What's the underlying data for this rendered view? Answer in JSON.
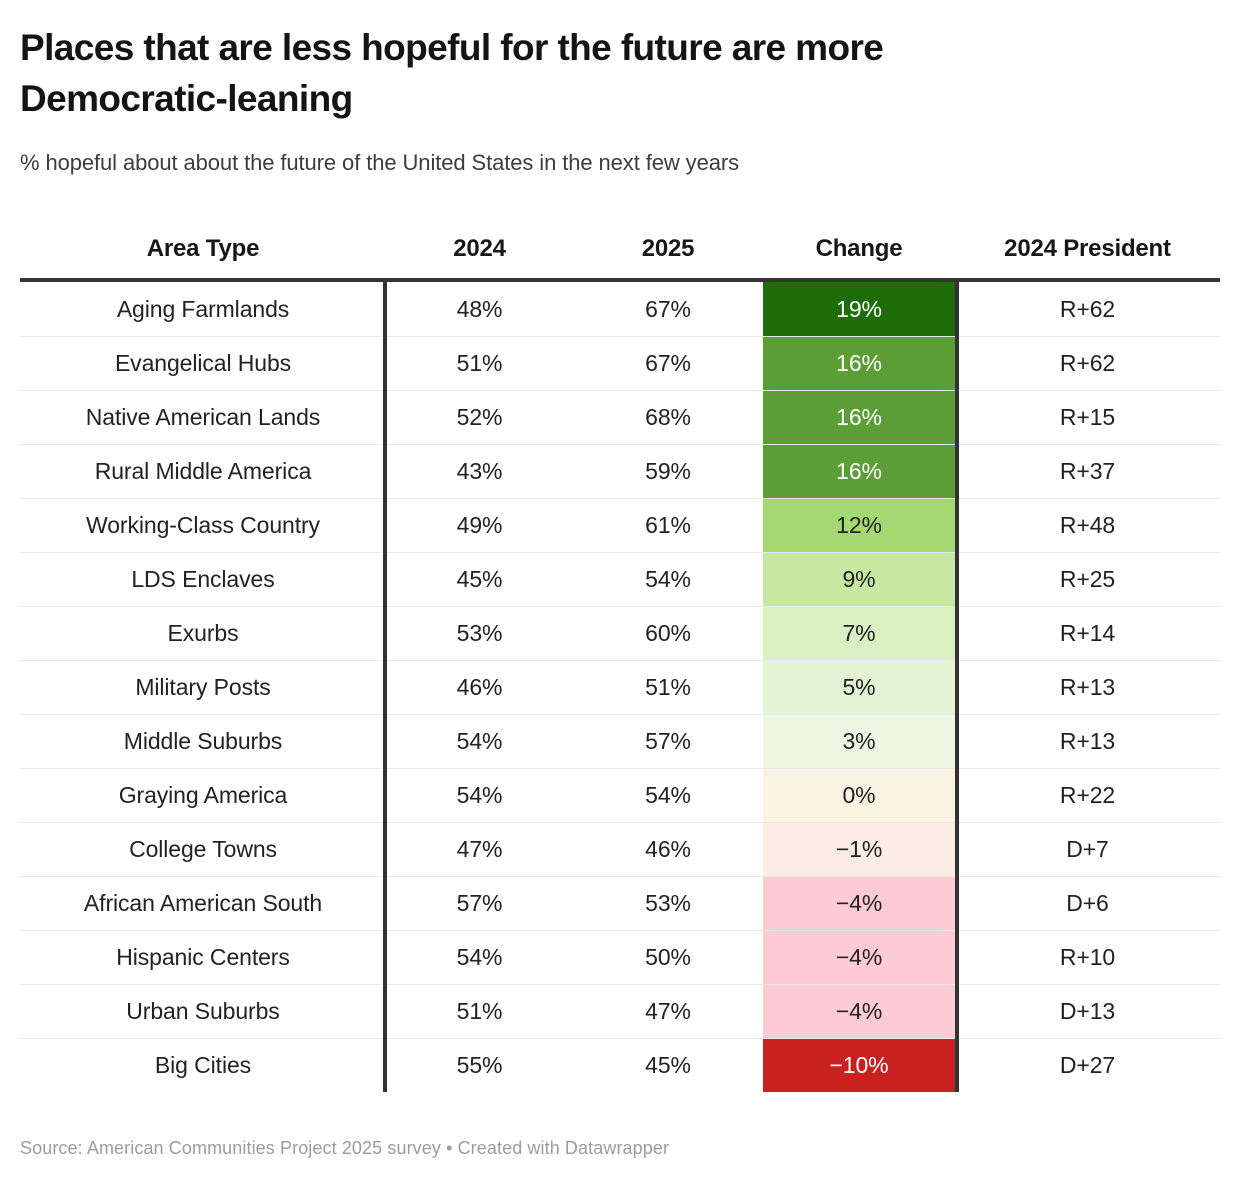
{
  "header": {
    "title": "Places that are less hopeful for the future are more Democratic-leaning",
    "subtitle": "% hopeful about about the future of the United States in the next few years"
  },
  "chart_data": {
    "type": "table",
    "title": "Places that are less hopeful for the future are more Democratic-leaning",
    "subtitle": "% hopeful about about the future of the United States in the next few years",
    "columns": [
      "Area Type",
      "2024",
      "2025",
      "Change",
      "2024 President"
    ],
    "heatmap_column": "Change",
    "rows": [
      {
        "area": "Aging Farmlands",
        "y2024": "48%",
        "y2025": "67%",
        "change": "19%",
        "president": "R+62",
        "change_bg": "#1d6d0a",
        "change_text": "#ffffff"
      },
      {
        "area": "Evangelical Hubs",
        "y2024": "51%",
        "y2025": "67%",
        "change": "16%",
        "president": "R+62",
        "change_bg": "#5b9e35",
        "change_text": "#ffffff"
      },
      {
        "area": "Native American Lands",
        "y2024": "52%",
        "y2025": "68%",
        "change": "16%",
        "president": "R+15",
        "change_bg": "#5b9e35",
        "change_text": "#ffffff"
      },
      {
        "area": "Rural Middle America",
        "y2024": "43%",
        "y2025": "59%",
        "change": "16%",
        "president": "R+37",
        "change_bg": "#5b9e35",
        "change_text": "#ffffff"
      },
      {
        "area": "Working-Class Country",
        "y2024": "49%",
        "y2025": "61%",
        "change": "12%",
        "president": "R+48",
        "change_bg": "#a4d873",
        "change_text": "#222222"
      },
      {
        "area": "LDS Enclaves",
        "y2024": "45%",
        "y2025": "54%",
        "change": "9%",
        "president": "R+25",
        "change_bg": "#c6e8a3",
        "change_text": "#222222"
      },
      {
        "area": "Exurbs",
        "y2024": "53%",
        "y2025": "60%",
        "change": "7%",
        "president": "R+14",
        "change_bg": "#daf0c3",
        "change_text": "#222222"
      },
      {
        "area": "Military Posts",
        "y2024": "46%",
        "y2025": "51%",
        "change": "5%",
        "president": "R+13",
        "change_bg": "#e5f3d5",
        "change_text": "#222222"
      },
      {
        "area": "Middle Suburbs",
        "y2024": "54%",
        "y2025": "57%",
        "change": "3%",
        "president": "R+13",
        "change_bg": "#eef6e3",
        "change_text": "#222222"
      },
      {
        "area": "Graying America",
        "y2024": "54%",
        "y2025": "54%",
        "change": "0%",
        "president": "R+22",
        "change_bg": "#f9f3e2",
        "change_text": "#222222"
      },
      {
        "area": "College Towns",
        "y2024": "47%",
        "y2025": "46%",
        "change": "−1%",
        "president": "D+7",
        "change_bg": "#fbece5",
        "change_text": "#222222"
      },
      {
        "area": "African American South",
        "y2024": "57%",
        "y2025": "53%",
        "change": "−4%",
        "president": "D+6",
        "change_bg": "#fecad3",
        "change_text": "#222222"
      },
      {
        "area": "Hispanic Centers",
        "y2024": "54%",
        "y2025": "50%",
        "change": "−4%",
        "president": "R+10",
        "change_bg": "#fecad3",
        "change_text": "#222222"
      },
      {
        "area": "Urban Suburbs",
        "y2024": "51%",
        "y2025": "47%",
        "change": "−4%",
        "president": "D+13",
        "change_bg": "#fecad3",
        "change_text": "#222222"
      },
      {
        "area": "Big Cities",
        "y2024": "55%",
        "y2025": "45%",
        "change": "−10%",
        "president": "D+27",
        "change_bg": "#c92020",
        "change_text": "#ffffff"
      }
    ],
    "legend_position": "none",
    "grid": "horizontal-rules",
    "accent_colors": {
      "positive_max": "#1d6d0a",
      "neutral": "#f9f3e2",
      "negative_max": "#c92020",
      "rule_color": "#333333"
    }
  },
  "footer": {
    "source_line": "Source: American Communities Project 2025 survey • Created with Datawrapper"
  }
}
